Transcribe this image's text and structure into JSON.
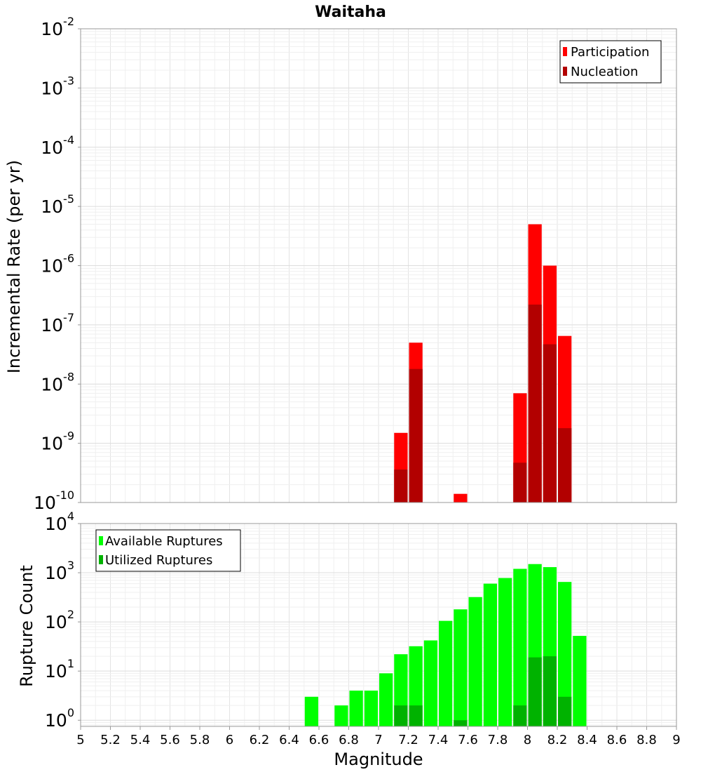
{
  "chart_data": [
    {
      "type": "bar",
      "title": "Waitaha",
      "ylabel": "Incremental Rate (per yr)",
      "xlabel": "",
      "yscale": "log",
      "ylim": [
        1e-10,
        0.01
      ],
      "xlim": [
        5,
        9
      ],
      "bin_width": 0.1,
      "ytick_bases": [
        "10",
        "10",
        "10",
        "10",
        "10",
        "10",
        "10",
        "10",
        "10"
      ],
      "ytick_exponents": [
        "-2",
        "-3",
        "-4",
        "-5",
        "-6",
        "-7",
        "-8",
        "-9",
        "-10"
      ],
      "legend_position": "top-right",
      "grid": true,
      "series": [
        {
          "name": "Participation",
          "color": "#ff0000",
          "x": [
            7.15,
            7.25,
            7.55,
            7.95,
            8.05,
            8.15,
            8.25
          ],
          "values": [
            1.5e-09,
            5e-08,
            1.4e-10,
            7e-09,
            5e-06,
            1e-06,
            6.5e-08
          ]
        },
        {
          "name": "Nucleation",
          "color": "#b20000",
          "x": [
            7.15,
            7.25,
            7.95,
            8.05,
            8.15,
            8.25
          ],
          "values": [
            3.6e-10,
            1.8e-08,
            4.7e-10,
            2.2e-07,
            4.7e-08,
            1.8e-09
          ]
        }
      ]
    },
    {
      "type": "bar",
      "title": "",
      "ylabel": "Rupture Count",
      "xlabel": "Magnitude",
      "yscale": "log",
      "ylim": [
        0.75,
        10000
      ],
      "xlim": [
        5,
        9
      ],
      "bin_width": 0.1,
      "ytick_bases": [
        "10",
        "10",
        "10",
        "10",
        "10"
      ],
      "ytick_exponents": [
        "4",
        "3",
        "2",
        "1",
        "0"
      ],
      "xticks": [
        "5",
        "5.2",
        "5.4",
        "5.6",
        "5.8",
        "6",
        "6.2",
        "6.4",
        "6.6",
        "6.8",
        "7",
        "7.2",
        "7.4",
        "7.6",
        "7.8",
        "8",
        "8.2",
        "8.4",
        "8.6",
        "8.8",
        "9"
      ],
      "legend_position": "top-left",
      "grid": true,
      "series": [
        {
          "name": "Available Ruptures",
          "color": "#00ff00",
          "x": [
            6.55,
            6.75,
            6.85,
            6.95,
            7.05,
            7.15,
            7.25,
            7.35,
            7.45,
            7.55,
            7.65,
            7.75,
            7.85,
            7.95,
            8.05,
            8.15,
            8.25,
            8.35
          ],
          "values": [
            3,
            2,
            4,
            4,
            9,
            22,
            32,
            42,
            105,
            180,
            320,
            600,
            780,
            1200,
            1500,
            1300,
            650,
            52
          ]
        },
        {
          "name": "Utilized Ruptures",
          "color": "#00b200",
          "x": [
            7.15,
            7.25,
            7.55,
            7.95,
            8.05,
            8.15,
            8.25
          ],
          "values": [
            2,
            2,
            1,
            2,
            19,
            20,
            3
          ]
        }
      ]
    }
  ]
}
